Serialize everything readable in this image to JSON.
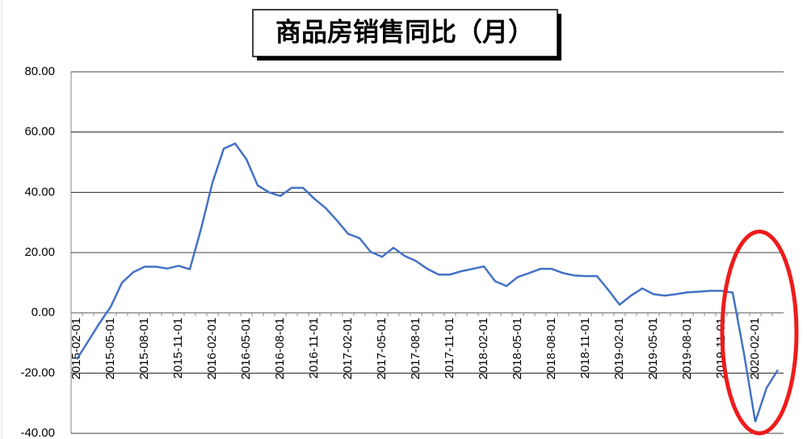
{
  "chart_data": {
    "type": "line",
    "title": "商品房销售同比（月）",
    "categories": [
      "2015-02-01",
      null,
      null,
      "2015-05-01",
      null,
      null,
      "2015-08-01",
      null,
      null,
      "2015-11-01",
      null,
      null,
      "2016-02-01",
      null,
      null,
      "2016-05-01",
      null,
      null,
      "2016-08-01",
      null,
      null,
      "2016-11-01",
      null,
      null,
      "2017-02-01",
      null,
      null,
      "2017-05-01",
      null,
      null,
      "2017-08-01",
      null,
      null,
      "2017-11-01",
      null,
      null,
      "2018-02-01",
      null,
      null,
      "2018-05-01",
      null,
      null,
      "2018-08-01",
      null,
      null,
      "2018-11-01",
      null,
      null,
      "2019-02-01",
      null,
      null,
      "2019-05-01",
      null,
      null,
      "2019-08-01",
      null,
      null,
      "2019-11-01",
      null,
      null,
      "2020-02-01",
      null,
      null
    ],
    "series": [
      {
        "color": "#4472c4",
        "values": [
          -15.4,
          -9.5,
          -3.5,
          2,
          10,
          13.5,
          15.3,
          15.3,
          14.7,
          15.6,
          14.5,
          28,
          43.2,
          54.5,
          56.2,
          51,
          42.3,
          40,
          38.8,
          41.5,
          41.5,
          37.9,
          34.8,
          30.7,
          26.2,
          24.8,
          20.2,
          18.6,
          21.6,
          18.9,
          17.2,
          14.6,
          12.7,
          12.7,
          13.8,
          14.6,
          15.4,
          10.5,
          8.9,
          11.9,
          13.2,
          14.6,
          14.6,
          13.2,
          12.4,
          12.2,
          12.2,
          7.6,
          2.7,
          5.7,
          8.1,
          6.2,
          5.7,
          6.2,
          6.8,
          7.0,
          7.3,
          7.3,
          6.7,
          -13.5,
          -36.2,
          -24.9,
          -18.9
        ]
      }
    ],
    "ylim": [
      -40,
      80
    ],
    "yticks": [
      {
        "value": -40,
        "label": "-40.00"
      },
      {
        "value": -20,
        "label": "-20.00"
      },
      {
        "value": 0,
        "label": "0.00"
      },
      {
        "value": 20,
        "label": "20.00"
      },
      {
        "value": 40,
        "label": "40.00"
      },
      {
        "value": 60,
        "label": "60.00"
      },
      {
        "value": 80,
        "label": "80.00"
      }
    ],
    "grid": true
  }
}
